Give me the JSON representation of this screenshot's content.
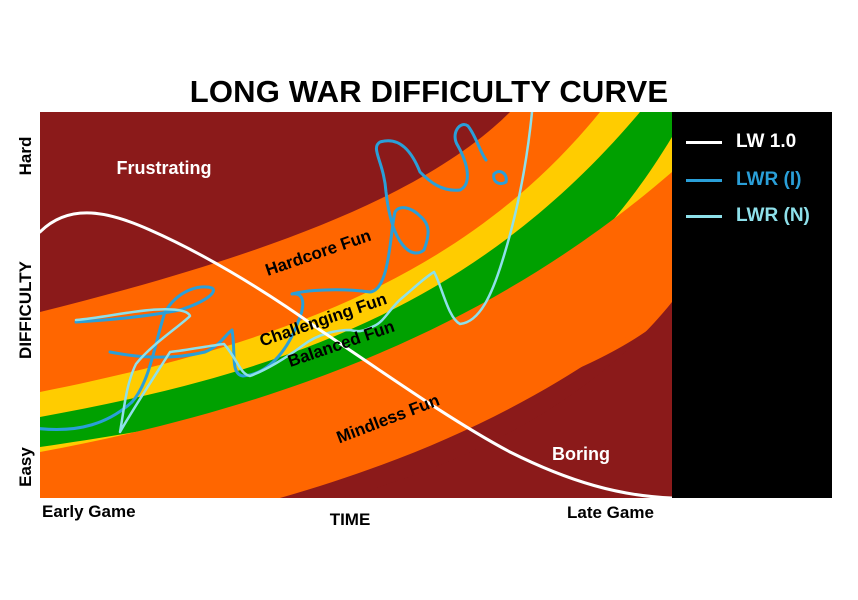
{
  "title": "LONG WAR DIFFICULTY CURVE",
  "axes": {
    "x_label": "TIME",
    "x_start": "Early Game",
    "x_end": "Late Game",
    "y_label": "DIFFICULTY",
    "y_top": "Hard",
    "y_bottom": "Easy"
  },
  "zones": [
    {
      "label": "Frustrating",
      "color": "#8b1a1a",
      "text_color": "#ffffff"
    },
    {
      "label": "Hardcore Fun",
      "color": "#ff6600",
      "text_color": "#000000"
    },
    {
      "label": "Challenging Fun",
      "color": "#ffcc00",
      "text_color": "#000000"
    },
    {
      "label": "Balanced Fun",
      "color": "#00a000",
      "text_color": "#000000"
    },
    {
      "label": "Mindless Fun",
      "color": "#ff6600",
      "text_color": "#000000"
    },
    {
      "label": "Boring",
      "color": "#8b1a1a",
      "text_color": "#ffffff"
    }
  ],
  "legend": [
    {
      "label": "LW 1.0",
      "color": "#ffffff"
    },
    {
      "label": "LWR (I)",
      "color": "#2a9fd8"
    },
    {
      "label": "LWR (N)",
      "color": "#8ee0ea"
    }
  ]
}
